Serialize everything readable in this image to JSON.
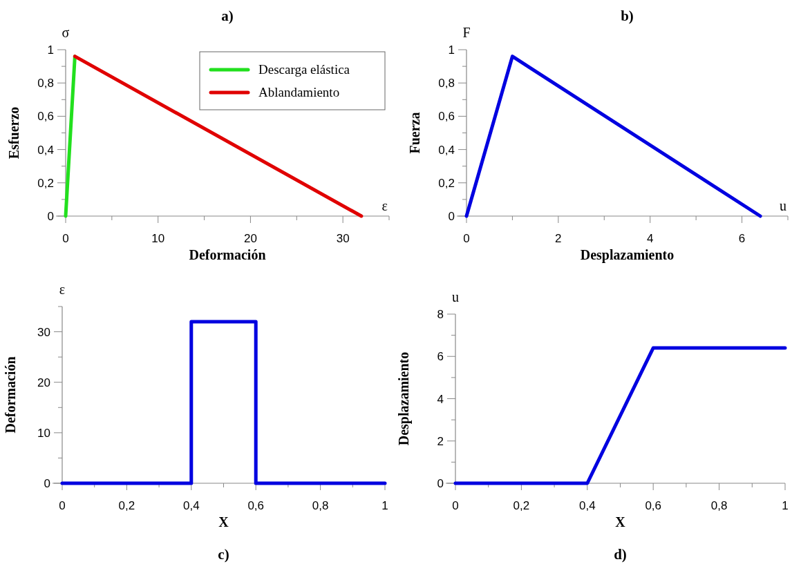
{
  "chart_data": [
    {
      "type": "line",
      "title": "a)",
      "xlabel": "Deformación",
      "ylabel": "Esfuerzo",
      "annotations": [
        "σ",
        "ε"
      ],
      "legend": "top right",
      "xlim": [
        0,
        35
      ],
      "xticks": [
        0,
        {
          "value": 5,
          "label": null
        },
        10,
        {
          "value": 15,
          "label": null
        },
        20,
        {
          "value": 25,
          "label": null
        },
        30,
        {
          "value": 35,
          "label": null
        }
      ],
      "ylim": [
        0,
        1
      ],
      "yticks": [
        0,
        {
          "value": 0.1,
          "label": null
        },
        {
          "value": 0.2,
          "label": "0,2"
        },
        {
          "value": 0.3,
          "label": null
        },
        {
          "value": 0.4,
          "label": "0,4"
        },
        {
          "value": 0.5,
          "label": null
        },
        {
          "value": 0.6,
          "label": "0,6"
        },
        {
          "value": 0.7,
          "label": null
        },
        {
          "value": 0.8,
          "label": "0,8"
        },
        {
          "value": 0.9,
          "label": null
        },
        1
      ],
      "series": [
        {
          "name": "Descarga elástica",
          "color": "#22e01e",
          "x": [
            0,
            1
          ],
          "values": [
            0,
            0.96
          ]
        },
        {
          "name": "Ablandamiento",
          "color": "#e00000",
          "x": [
            1,
            32
          ],
          "values": [
            0.96,
            0
          ]
        }
      ]
    },
    {
      "type": "line",
      "title": "b)",
      "xlabel": "Desplazamiento",
      "ylabel": "Fuerza",
      "annotations": [
        "F",
        "u"
      ],
      "xlim": [
        0,
        7
      ],
      "xticks": [
        0,
        {
          "value": 1,
          "label": null
        },
        2,
        {
          "value": 3,
          "label": null
        },
        4,
        {
          "value": 5,
          "label": null
        },
        6,
        {
          "value": 7,
          "label": null
        }
      ],
      "ylim": [
        0,
        1
      ],
      "yticks": [
        0,
        {
          "value": 0.1,
          "label": null
        },
        {
          "value": 0.2,
          "label": "0,2"
        },
        {
          "value": 0.3,
          "label": null
        },
        {
          "value": 0.4,
          "label": "0,4"
        },
        {
          "value": 0.5,
          "label": null
        },
        {
          "value": 0.6,
          "label": "0,6"
        },
        {
          "value": 0.7,
          "label": null
        },
        {
          "value": 0.8,
          "label": "0,8"
        },
        {
          "value": 0.9,
          "label": null
        },
        1
      ],
      "series": [
        {
          "color": "#0000e0",
          "x": [
            0,
            1,
            6.4
          ],
          "values": [
            0,
            0.96,
            0
          ]
        }
      ]
    },
    {
      "type": "line",
      "title": "c)",
      "xlabel": "X",
      "ylabel": "Deformación",
      "annotations": [
        "ε"
      ],
      "xlim": [
        0,
        1
      ],
      "xticks": [
        0,
        {
          "value": 0.1,
          "label": null
        },
        {
          "value": 0.2,
          "label": "0,2"
        },
        {
          "value": 0.3,
          "label": null
        },
        {
          "value": 0.4,
          "label": "0,4"
        },
        {
          "value": 0.5,
          "label": null
        },
        {
          "value": 0.6,
          "label": "0,6"
        },
        {
          "value": 0.7,
          "label": null
        },
        {
          "value": 0.8,
          "label": "0,8"
        },
        {
          "value": 0.9,
          "label": null
        },
        1
      ],
      "ylim": [
        0,
        35
      ],
      "yticks": [
        0,
        {
          "value": 5,
          "label": null
        },
        10,
        {
          "value": 15,
          "label": null
        },
        20,
        {
          "value": 25,
          "label": null
        },
        30,
        {
          "value": 35,
          "label": null
        }
      ],
      "series": [
        {
          "color": "#0000e0",
          "x": [
            0,
            0.4,
            0.4,
            0.6,
            0.6,
            1
          ],
          "values": [
            0,
            0,
            32,
            32,
            0,
            0
          ]
        }
      ]
    },
    {
      "type": "line",
      "title": "d)",
      "xlabel": "X",
      "ylabel": "Desplazamiento",
      "annotations": [
        "u"
      ],
      "xlim": [
        0,
        1
      ],
      "xticks": [
        0,
        {
          "value": 0.1,
          "label": null
        },
        {
          "value": 0.2,
          "label": "0,2"
        },
        {
          "value": 0.3,
          "label": null
        },
        {
          "value": 0.4,
          "label": "0,4"
        },
        {
          "value": 0.5,
          "label": null
        },
        {
          "value": 0.6,
          "label": "0,6"
        },
        {
          "value": 0.7,
          "label": null
        },
        {
          "value": 0.8,
          "label": "0,8"
        },
        {
          "value": 0.9,
          "label": null
        },
        1
      ],
      "ylim": [
        0,
        8
      ],
      "yticks": [
        0,
        {
          "value": 1,
          "label": null
        },
        2,
        {
          "value": 3,
          "label": null
        },
        4,
        {
          "value": 5,
          "label": null
        },
        6,
        {
          "value": 7,
          "label": null
        },
        8
      ],
      "series": [
        {
          "color": "#0000e0",
          "x": [
            0,
            0.4,
            0.6,
            1
          ],
          "values": [
            0,
            0,
            6.4,
            6.4
          ]
        }
      ]
    }
  ]
}
